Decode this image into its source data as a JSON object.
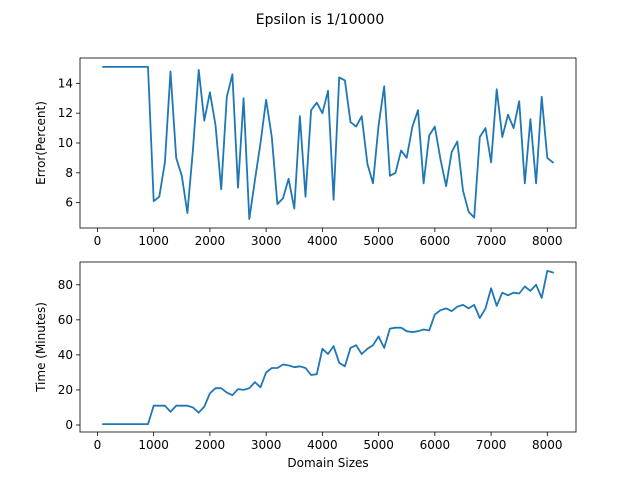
{
  "figure": {
    "suptitle": "Epsilon is 1/10000"
  },
  "colors": {
    "line": "#1f77b4"
  },
  "chart_data": [
    {
      "type": "line",
      "title": "",
      "xlabel": "",
      "ylabel": "Error(Percent)",
      "xlim": [
        -310,
        8510
      ],
      "ylim": [
        4.3,
        15.7
      ],
      "xticks": [
        0,
        1000,
        2000,
        3000,
        4000,
        5000,
        6000,
        7000,
        8000
      ],
      "yticks": [
        6,
        8,
        10,
        12,
        14
      ],
      "series": [
        {
          "name": "",
          "x": [
            100,
            900,
            1000,
            1100,
            1200,
            1300,
            1400,
            1500,
            1600,
            1700,
            1800,
            1900,
            2000,
            2100,
            2200,
            2300,
            2400,
            2500,
            2600,
            2700,
            2800,
            2900,
            3000,
            3100,
            3200,
            3300,
            3400,
            3500,
            3600,
            3700,
            3800,
            3900,
            4000,
            4100,
            4200,
            4300,
            4400,
            4500,
            4600,
            4700,
            4800,
            4900,
            5000,
            5100,
            5200,
            5300,
            5400,
            5500,
            5600,
            5700,
            5800,
            5900,
            6000,
            6100,
            6200,
            6300,
            6400,
            6500,
            6600,
            6700,
            6800,
            6900,
            7000,
            7100,
            7200,
            7300,
            7400,
            7500,
            7600,
            7700,
            7800,
            7900,
            8000,
            8100
          ],
          "y": [
            15.1,
            15.1,
            6.1,
            6.4,
            8.7,
            14.8,
            9.0,
            7.8,
            5.3,
            9.6,
            14.9,
            11.5,
            13.4,
            11.2,
            6.9,
            13.1,
            14.6,
            7.0,
            13.0,
            4.9,
            7.5,
            10.0,
            12.9,
            10.4,
            5.9,
            6.3,
            7.6,
            5.6,
            11.8,
            6.4,
            12.2,
            12.7,
            12.0,
            13.5,
            6.2,
            14.4,
            14.2,
            11.4,
            11.1,
            11.8,
            8.6,
            7.3,
            11.2,
            13.8,
            7.8,
            8.0,
            9.5,
            9.0,
            11.1,
            12.2,
            7.3,
            10.5,
            11.1,
            8.9,
            7.1,
            9.4,
            10.1,
            6.8,
            5.4,
            5.0,
            10.4,
            11.0,
            8.7,
            13.6,
            10.4,
            11.9,
            11.0,
            12.8,
            7.3,
            11.6,
            7.3,
            13.1,
            9.0,
            8.7
          ]
        }
      ]
    },
    {
      "type": "line",
      "title": "",
      "xlabel": "Domain Sizes",
      "ylabel": "Time (Minutes)",
      "xlim": [
        -310,
        8510
      ],
      "ylim": [
        -4,
        93
      ],
      "xticks": [
        0,
        1000,
        2000,
        3000,
        4000,
        5000,
        6000,
        7000,
        8000
      ],
      "yticks": [
        0,
        20,
        40,
        60,
        80
      ],
      "series": [
        {
          "name": "",
          "x": [
            100,
            900,
            1000,
            1100,
            1200,
            1300,
            1400,
            1500,
            1600,
            1700,
            1800,
            1900,
            2000,
            2100,
            2200,
            2300,
            2400,
            2500,
            2600,
            2700,
            2800,
            2900,
            3000,
            3100,
            3200,
            3300,
            3400,
            3500,
            3600,
            3700,
            3800,
            3900,
            4000,
            4100,
            4200,
            4300,
            4400,
            4500,
            4600,
            4700,
            4800,
            4900,
            5000,
            5100,
            5200,
            5300,
            5400,
            5500,
            5600,
            5700,
            5800,
            5900,
            6000,
            6100,
            6200,
            6300,
            6400,
            6500,
            6600,
            6700,
            6800,
            6900,
            7000,
            7100,
            7200,
            7300,
            7400,
            7500,
            7600,
            7700,
            7800,
            7900,
            8000,
            8100
          ],
          "y": [
            0.5,
            0.5,
            11,
            11,
            11,
            7.5,
            11,
            11,
            11,
            10,
            7,
            10.5,
            18,
            21,
            21,
            18.5,
            17,
            20.5,
            20,
            21,
            24.5,
            21.5,
            30,
            32.5,
            32.5,
            34.5,
            34,
            33,
            33.5,
            32.5,
            28.5,
            29,
            43.5,
            40.5,
            45,
            35.5,
            33.5,
            44,
            45.5,
            40.5,
            43.5,
            45.5,
            50.5,
            44,
            55,
            55.5,
            55.5,
            53.5,
            53,
            53.5,
            54.5,
            54,
            63,
            65.5,
            66.5,
            65,
            67.5,
            68.5,
            66.5,
            68.5,
            61,
            66.5,
            78,
            68,
            75.5,
            74,
            75.5,
            75,
            79,
            76.5,
            80,
            72.5,
            88,
            87
          ]
        }
      ]
    }
  ]
}
